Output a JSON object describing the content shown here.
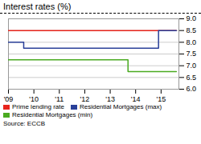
{
  "chart_data": {
    "type": "line",
    "title": "Interest rates (%)",
    "source": "Source: ECCB",
    "xlim": [
      2009,
      2015.7
    ],
    "xticks": [
      {
        "value": 2009,
        "label": "'09"
      },
      {
        "value": 2010,
        "label": "'10"
      },
      {
        "value": 2011,
        "label": "'11"
      },
      {
        "value": 2012,
        "label": "'12"
      },
      {
        "value": 2013,
        "label": "'13"
      },
      {
        "value": 2014,
        "label": "'14"
      },
      {
        "value": 2015,
        "label": "'15"
      }
    ],
    "ylim": [
      6.0,
      9.0
    ],
    "yticks": [
      {
        "value": 6.0,
        "label": "6.0"
      },
      {
        "value": 6.5,
        "label": "6.5"
      },
      {
        "value": 7.0,
        "label": "7.0"
      },
      {
        "value": 7.5,
        "label": "7.5"
      },
      {
        "value": 8.0,
        "label": "8.0"
      },
      {
        "value": 8.5,
        "label": "8.5"
      },
      {
        "value": 9.0,
        "label": "9.0"
      }
    ],
    "grid": true,
    "legend": "bottom",
    "series": [
      {
        "name": "Prime lending rate",
        "color": "#e8241c",
        "x": [
          2009,
          2015.6
        ],
        "values": [
          8.5,
          8.5
        ]
      },
      {
        "name": "Residential Mortgages (max)",
        "color": "#2a4099",
        "x": [
          2009,
          2009.6,
          2009.6,
          2014.9,
          2014.9,
          2015.6
        ],
        "values": [
          8.0,
          8.0,
          7.75,
          7.75,
          8.5,
          8.5
        ]
      },
      {
        "name": "Residential Mortgages (min)",
        "color": "#4aaa20",
        "x": [
          2009,
          2013.7,
          2013.7,
          2015.6
        ],
        "values": [
          7.25,
          7.25,
          6.75,
          6.75
        ]
      }
    ]
  }
}
